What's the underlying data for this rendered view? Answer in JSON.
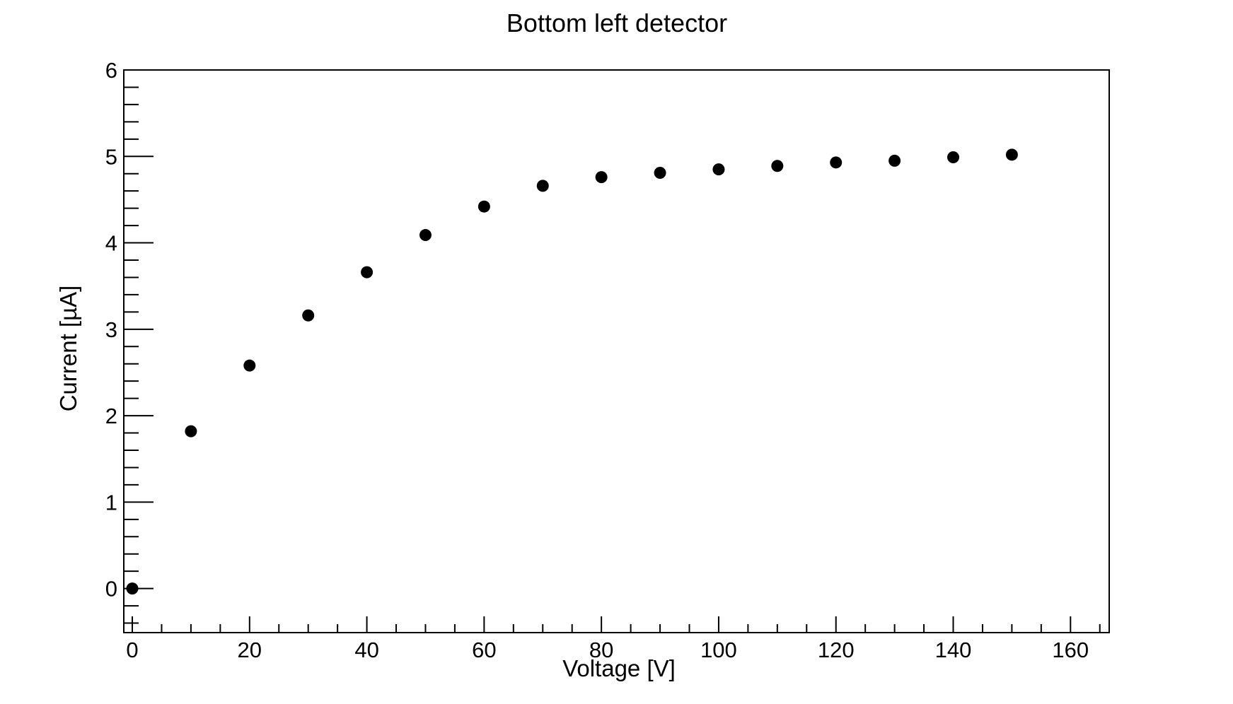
{
  "chart_data": {
    "type": "scatter",
    "title": "Bottom left detector",
    "xlabel": "Voltage [V]",
    "ylabel": "Current [µA]",
    "x": [
      0,
      10,
      20,
      30,
      40,
      50,
      60,
      70,
      80,
      90,
      100,
      110,
      120,
      130,
      140,
      150
    ],
    "y": [
      0.0,
      1.82,
      2.58,
      3.16,
      3.66,
      4.09,
      4.42,
      4.66,
      4.76,
      4.81,
      4.85,
      4.89,
      4.93,
      4.95,
      4.99,
      5.02
    ],
    "xlim": [
      -1.45,
      166.6
    ],
    "ylim": [
      -0.51,
      6.0
    ],
    "x_major_ticks": [
      0,
      20,
      40,
      60,
      80,
      100,
      120,
      140,
      160
    ],
    "x_minor_step": 5,
    "y_major_ticks": [
      0,
      1,
      2,
      3,
      4,
      5,
      6
    ],
    "y_minor_step": 0.2,
    "grid": false,
    "legend_position": "none",
    "marker": {
      "shape": "circle",
      "color": "#000000",
      "radius_px": 8.5
    },
    "frame_color": "#000000",
    "background_color": "#ffffff"
  }
}
